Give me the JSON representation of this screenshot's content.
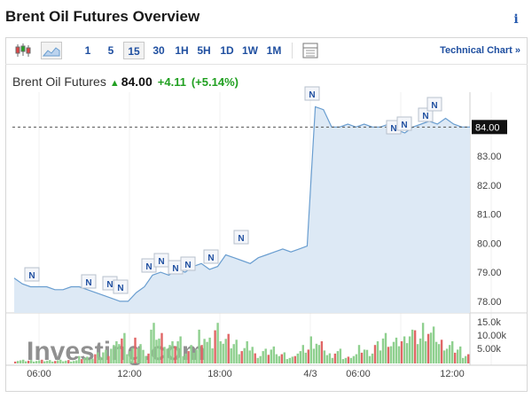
{
  "header": {
    "title": "Brent Oil Futures Overview",
    "info_icon": "info-icon"
  },
  "toolbar": {
    "intervals": [
      "1",
      "5",
      "15",
      "30",
      "1H",
      "5H",
      "1D",
      "1W",
      "1M"
    ],
    "active_interval": "15",
    "technical_chart": "Technical Chart »"
  },
  "quote": {
    "name": "Brent Oil Futures",
    "price": "84.00",
    "change": "+4.11",
    "change_pct": "(+5.14%)",
    "direction": "up"
  },
  "colors": {
    "accent": "#1f4fa0",
    "up": "#22a022",
    "area": "#dde9f5",
    "line": "#6a9ed0",
    "vol_up": "#8fd08f",
    "vol_down": "#e06666"
  },
  "chart_data": {
    "type": "area",
    "price_axis": {
      "ticks": [
        "84.00",
        "83.00",
        "82.00",
        "81.00",
        "80.00",
        "79.00",
        "78.00"
      ],
      "range": [
        77.6,
        85.2
      ],
      "current": 84.0
    },
    "volume_axis": {
      "ticks": [
        "15.0k",
        "10.00k",
        "5.00k"
      ]
    },
    "time_labels": [
      "06:00",
      "12:00",
      "18:00",
      "4/3",
      "06:00",
      "12:00"
    ],
    "price_series": [
      78.8,
      78.6,
      78.5,
      78.5,
      78.5,
      78.4,
      78.4,
      78.5,
      78.5,
      78.4,
      78.3,
      78.2,
      78.1,
      78.0,
      78.0,
      78.3,
      78.5,
      78.9,
      79.0,
      78.9,
      79.1,
      79.0,
      79.2,
      79.3,
      79.1,
      79.2,
      79.6,
      79.5,
      79.4,
      79.3,
      79.5,
      79.6,
      79.7,
      79.8,
      79.7,
      79.8,
      79.9,
      84.7,
      84.6,
      84.0,
      84.0,
      84.1,
      84.0,
      84.1,
      84.0,
      84.0,
      84.1,
      83.9,
      83.8,
      84.0,
      84.1,
      84.2,
      84.1,
      84.3,
      84.1,
      84.0,
      84.0
    ],
    "volume_series": [
      1,
      1,
      1,
      1,
      1,
      1,
      1,
      1,
      2,
      2,
      3,
      4,
      6,
      9,
      5,
      7,
      4,
      11,
      9,
      6,
      8,
      4,
      5,
      10,
      7,
      12,
      8,
      7,
      5,
      6,
      3,
      4,
      5,
      3,
      2,
      4,
      5,
      8,
      6,
      3,
      4,
      2,
      3,
      5,
      4,
      6,
      9,
      7,
      8,
      11,
      9,
      12,
      10,
      7,
      6,
      5,
      3
    ],
    "news_markers_count": 20,
    "news_label": "N",
    "watermark": "Investing.com"
  }
}
